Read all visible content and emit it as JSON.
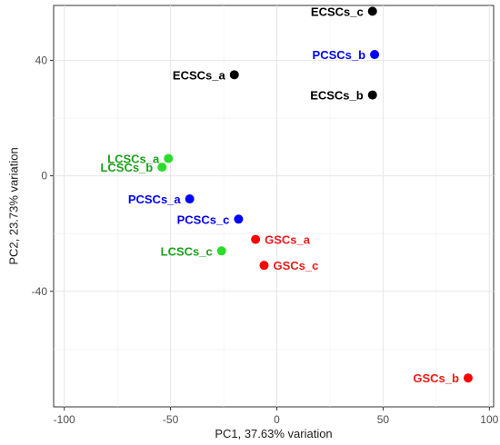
{
  "chart_data": {
    "type": "scatter",
    "xlabel": "PC1, 37.63% variation",
    "ylabel": "PC2, 23.73% variation",
    "xlim": [
      -105,
      102
    ],
    "ylim": [
      -80,
      59
    ],
    "xticks": [
      -100,
      -50,
      0,
      50,
      100
    ],
    "yticks": [
      40,
      0,
      -40
    ],
    "xtick_labels": [
      "-100",
      "-50",
      "0",
      "50",
      "100"
    ],
    "ytick_labels": [
      "40",
      "0",
      "-40"
    ],
    "grid": true,
    "legend": "none",
    "groups": [
      {
        "group": "ECSCs",
        "color": "#000000",
        "label_color": "#000000"
      },
      {
        "group": "PCSCs",
        "color": "#0000ff",
        "label_color": "#0000ff"
      },
      {
        "group": "LCSCs",
        "color": "#2bdc2b",
        "label_color": "#1ba01b"
      },
      {
        "group": "GSCs",
        "color": "#ff0000",
        "label_color": "#ee1a1a"
      }
    ],
    "points": [
      {
        "label": "ECSCs_c",
        "x": 45,
        "y": 57,
        "group": "ECSCs",
        "side": "left"
      },
      {
        "label": "PCSCs_b",
        "x": 46,
        "y": 42,
        "group": "PCSCs",
        "side": "left"
      },
      {
        "label": "ECSCs_a",
        "x": -20,
        "y": 35,
        "group": "ECSCs",
        "side": "left"
      },
      {
        "label": "ECSCs_b",
        "x": 45,
        "y": 28,
        "group": "ECSCs",
        "side": "left"
      },
      {
        "label": "LCSCs_a",
        "x": -51,
        "y": 6,
        "group": "LCSCs",
        "side": "left"
      },
      {
        "label": "LCSCs_b",
        "x": -54,
        "y": 3,
        "group": "LCSCs",
        "side": "left"
      },
      {
        "label": "PCSCs_a",
        "x": -41,
        "y": -8,
        "group": "PCSCs",
        "side": "left"
      },
      {
        "label": "PCSCs_c",
        "x": -18,
        "y": -15,
        "group": "PCSCs",
        "side": "left"
      },
      {
        "label": "GSCs_a",
        "x": -10,
        "y": -22,
        "group": "GSCs",
        "side": "right"
      },
      {
        "label": "LCSCs_c",
        "x": -26,
        "y": -26,
        "group": "LCSCs",
        "side": "left"
      },
      {
        "label": "GSCs_c",
        "x": -6,
        "y": -31,
        "group": "GSCs",
        "side": "right"
      },
      {
        "label": "GSCs_b",
        "x": 90,
        "y": -70,
        "group": "GSCs",
        "side": "left"
      }
    ]
  }
}
